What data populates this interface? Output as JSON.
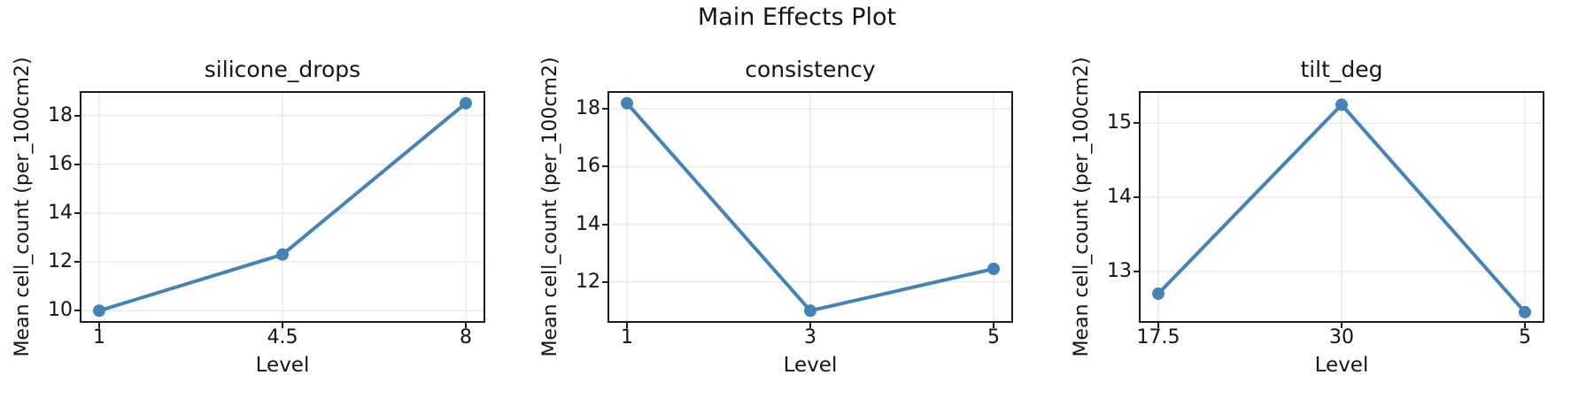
{
  "figure": {
    "title": "Main Effects Plot"
  },
  "style": {
    "line_color": "#4682b4",
    "grid_color": "#e8e8e8",
    "spine_color": "#1b1b1b",
    "text_color": "#141414",
    "background": "#ffffff"
  },
  "chart_data": [
    {
      "type": "line",
      "title": "silicone_drops",
      "categories": [
        "1",
        "4.5",
        "8"
      ],
      "values": [
        10.0,
        12.3,
        18.5
      ],
      "xlabel": "Level",
      "ylabel": "Mean cell_count (per_100cm2)",
      "yticks": [
        10,
        12,
        14,
        16,
        18
      ],
      "ylim": [
        9.575,
        18.925
      ],
      "grid": true,
      "legend": "none"
    },
    {
      "type": "line",
      "title": "consistency",
      "categories": [
        "1",
        "3",
        "5"
      ],
      "values": [
        18.2,
        11.0,
        12.45
      ],
      "xlabel": "Level",
      "ylabel": "Mean cell_count (per_100cm2)",
      "yticks": [
        12,
        14,
        16,
        18
      ],
      "ylim": [
        10.64,
        18.56
      ],
      "grid": true,
      "legend": "none"
    },
    {
      "type": "line",
      "title": "tilt_deg",
      "categories": [
        "17.5",
        "30",
        "5"
      ],
      "values": [
        12.7,
        15.25,
        12.45
      ],
      "xlabel": "Level",
      "ylabel": "Mean cell_count (per_100cm2)",
      "yticks": [
        13,
        14,
        15
      ],
      "ylim": [
        12.33,
        15.41
      ],
      "grid": true,
      "legend": "none"
    }
  ]
}
